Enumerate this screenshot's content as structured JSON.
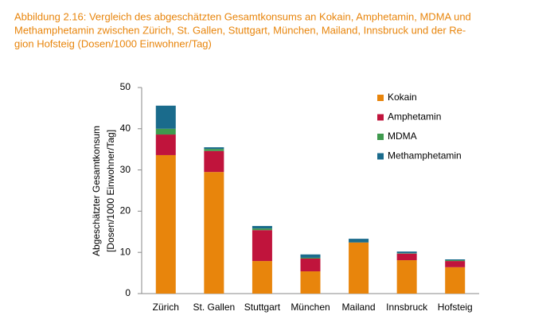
{
  "chart_data": {
    "type": "stacked_bar",
    "title": [
      "Abbildung 2.16: Vergleich des abgeschätzten Gesamtkonsums an Kokain, Amphetamin, MDMA und",
      "Methamphetamin zwischen Zürich, St. Gallen, Stuttgart, München, Mailand, Innsbruck und der Re-",
      "gion Hofsteig (Dosen/1000 Einwohner/Tag)"
    ],
    "y_label": [
      "Abgeschätzter Gesamtkonsum",
      "[Dosen/1000 Einwohner/Tag]"
    ],
    "categories": [
      "Zürich",
      "St. Gallen",
      "Stuttgart",
      "München",
      "Mailand",
      "Innsbruck",
      "Hofsteig"
    ],
    "series": [
      {
        "name": "Kokain",
        "color": "#e8850c",
        "values": [
          33.6,
          29.5,
          7.9,
          5.4,
          12.4,
          8.1,
          6.4
        ]
      },
      {
        "name": "Amphetamin",
        "color": "#c0143c",
        "values": [
          5.0,
          5.1,
          7.5,
          3.1,
          0,
          1.6,
          1.5
        ]
      },
      {
        "name": "MDMA",
        "color": "#3f9a4e",
        "values": [
          1.4,
          0.5,
          0.4,
          0.2,
          0,
          0.1,
          0.2
        ]
      },
      {
        "name": "Methamphetamin",
        "color": "#1a6b8c",
        "values": [
          5.6,
          0.4,
          0.6,
          0.8,
          0.9,
          0.4,
          0.2
        ]
      }
    ],
    "ylim": [
      0,
      50
    ],
    "yticks": [
      0,
      10,
      20,
      30,
      40,
      50
    ],
    "grid": false,
    "legend": "right"
  }
}
